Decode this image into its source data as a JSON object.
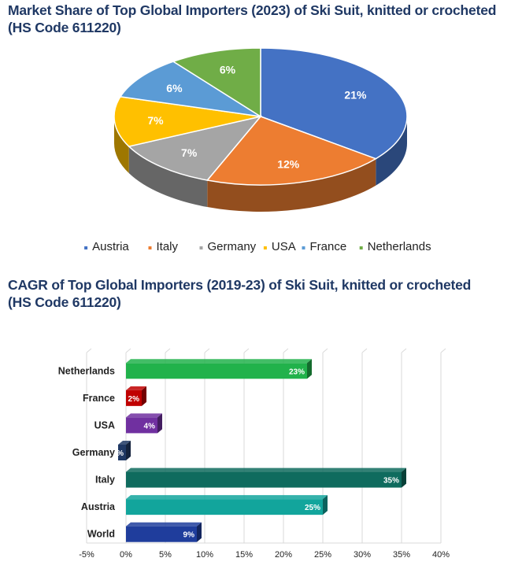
{
  "chart_data": [
    {
      "type": "pie",
      "title_line1": "Market Share of Top Global Importers (2023) of Ski Suit, knitted or crocheted",
      "title_line2": "(HS Code 611220)",
      "categories": [
        "Austria",
        "Italy",
        "Germany",
        "USA",
        "France",
        "Netherlands"
      ],
      "values": [
        21,
        12,
        7,
        7,
        6,
        6
      ],
      "labels": [
        "21%",
        "12%",
        "7%",
        "7%",
        "6%",
        "6%"
      ],
      "colors": [
        "#4472c4",
        "#ed7d31",
        "#a5a5a5",
        "#ffc000",
        "#5b9bd5",
        "#70ad47"
      ],
      "legend_placement": "bottom"
    },
    {
      "type": "bar",
      "orientation": "horizontal",
      "title_line1": "CAGR of Top Global Importers (2019-23) of Ski Suit, knitted or crocheted",
      "title_line2": "(HS Code 611220)",
      "categories": [
        "Netherlands",
        "France",
        "USA",
        "Germany",
        "Italy",
        "Austria",
        "World"
      ],
      "values": [
        23,
        2,
        4,
        -1,
        35,
        25,
        9
      ],
      "labels": [
        "23%",
        "2%",
        "4%",
        "-1%",
        "35%",
        "25%",
        "9%"
      ],
      "colors": [
        "#21b24b",
        "#c00000",
        "#7030a0",
        "#1f3864",
        "#0f6b5e",
        "#12a59c",
        "#1f3d9c"
      ],
      "xlim": [
        -5,
        40
      ],
      "xticks": [
        -5,
        0,
        5,
        10,
        15,
        20,
        25,
        30,
        35,
        40
      ],
      "xtick_labels": [
        "-5%",
        "0%",
        "5%",
        "10%",
        "15%",
        "20%",
        "25%",
        "30%",
        "35%",
        "40%"
      ],
      "grid": true
    }
  ]
}
